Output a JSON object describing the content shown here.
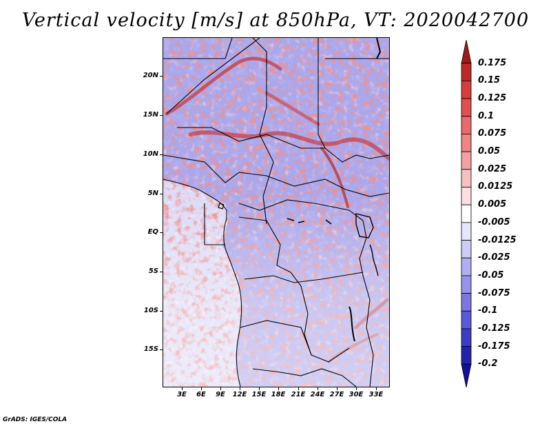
{
  "title": "Vertical velocity [m/s] at 850hPa, VT: 2020042700",
  "credit": "GrADS: IGES/COLA",
  "latitude_labels": [
    "20N",
    "15N",
    "10N",
    "5N",
    "EQ",
    "5S",
    "10S",
    "15S"
  ],
  "longitude_labels": [
    "3E",
    "6E",
    "9E",
    "12E",
    "15E",
    "18E",
    "21E",
    "24E",
    "27E",
    "30E",
    "33E"
  ],
  "colorbar": {
    "labels": [
      "0.175",
      "0.15",
      "0.125",
      "0.1",
      "0.075",
      "0.05",
      "0.025",
      "0.0125",
      "0.005",
      "-0.005",
      "-0.0125",
      "-0.025",
      "-0.05",
      "-0.075",
      "-0.1",
      "-0.125",
      "-0.175",
      "-0.2"
    ],
    "colors": [
      "#a01818",
      "#c02828",
      "#d83c3c",
      "#e05050",
      "#e86a6a",
      "#ee8484",
      "#f4a0a0",
      "#f8c0c0",
      "#fce0e0",
      "#ffffff",
      "#e6e6fa",
      "#ccccf4",
      "#b0b0f0",
      "#9494e8",
      "#7878e0",
      "#5a5ad8",
      "#3c3cc4",
      "#2424a8",
      "#10109a"
    ]
  },
  "colors": {
    "positive_extreme": "#a01818",
    "negative_extreme": "#10109a",
    "boundaries": "#000000"
  }
}
